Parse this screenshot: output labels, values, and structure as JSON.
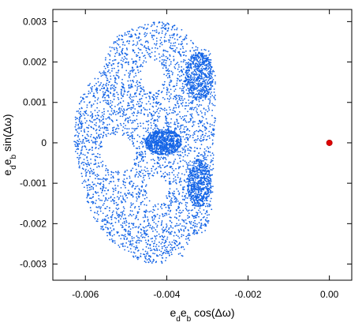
{
  "chart_data": {
    "type": "scatter",
    "title": "",
    "xlabel": "e_d e_b cos(Δω)",
    "ylabel": "e_d e_b sin(Δω)",
    "xlim": [
      -0.0068,
      0.00055
    ],
    "ylim": [
      -0.0034,
      0.0033
    ],
    "xticks": [
      -0.006,
      -0.004,
      -0.002,
      0.0
    ],
    "xtick_labels": [
      "-0.006",
      "-0.004",
      "-0.002",
      "0.00"
    ],
    "yticks": [
      -0.003,
      -0.002,
      -0.001,
      0,
      0.001,
      0.002,
      0.003
    ],
    "ytick_labels": [
      "-0.003",
      "-0.002",
      "-0.001",
      "0",
      "0.001",
      "0.002",
      "0.003"
    ],
    "grid": false,
    "series": [
      {
        "marker_color": "#1565e6",
        "shape": "dense cloud of points forming a closed, lobed region",
        "x_range": [
          -0.0063,
          -0.0028
        ],
        "y_range": [
          -0.003,
          0.003
        ],
        "notable_features": [
          "dense core near (-0.0041, 0.0000)",
          "holes near (-0.0052, -0.0003) and (-0.0043, 0.0017)"
        ]
      },
      {
        "marker_color": "#e00000",
        "x": [
          0.0
        ],
        "y": [
          0.0
        ]
      }
    ]
  }
}
